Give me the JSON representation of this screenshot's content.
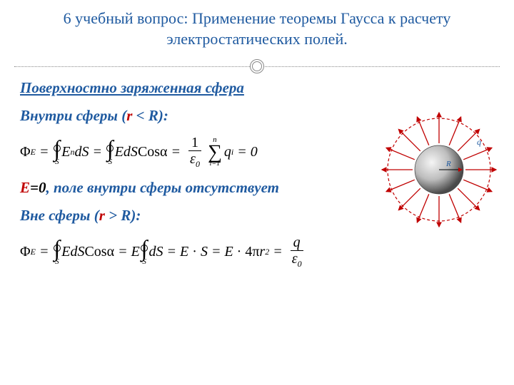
{
  "header": {
    "title": "6 учебный вопрос: Применение теоремы Гаусса к расчету электростатических полей.",
    "title_color": "#1f5aa0",
    "title_fontsize": 22
  },
  "subtitle": {
    "text": "Поверхностно заряженная сфера",
    "color": "#1f5aa0",
    "fontsize": 21,
    "italic": true,
    "bold": true,
    "underline": true
  },
  "line_inside": {
    "prefix": "Внутри сферы (",
    "var": "r",
    "mid": " < R",
    "suffix": "):",
    "prefix_color": "#1f5aa0",
    "var_color": "#c00000"
  },
  "formula_inside": {
    "text_parts": [
      "Φ",
      "E",
      " = ",
      "∮",
      "S",
      " E",
      "n",
      "dS",
      " = ",
      "∮",
      "S",
      " EdS",
      "Cosα",
      " = ",
      "1",
      "ε",
      "0",
      "∑",
      "i=1",
      "n",
      " q",
      "i",
      " = 0"
    ],
    "color": "#000000"
  },
  "line_zero": {
    "var": "E",
    "eq": "=0",
    "rest": ", поле внутри сферы отсутствует",
    "var_color": "#c00000",
    "eq_color": "#000000",
    "rest_color": "#1f5aa0"
  },
  "line_outside": {
    "prefix": "Вне сферы (",
    "var": "r",
    "mid": " > R",
    "suffix": "):",
    "prefix_color": "#1f5aa0",
    "var_color": "#c00000"
  },
  "diagram": {
    "type": "sphere-field",
    "outer_radius": 72,
    "inner_radius": 34,
    "arrow_count": 16,
    "arrow_color": "#c00000",
    "dash_color": "#c00000",
    "sphere_gradient_light": "#f0f0f0",
    "sphere_gradient_dark": "#555555",
    "label_q": "q",
    "label_R": "R",
    "label_color": "#1f5aa0",
    "background": "#ffffff"
  }
}
